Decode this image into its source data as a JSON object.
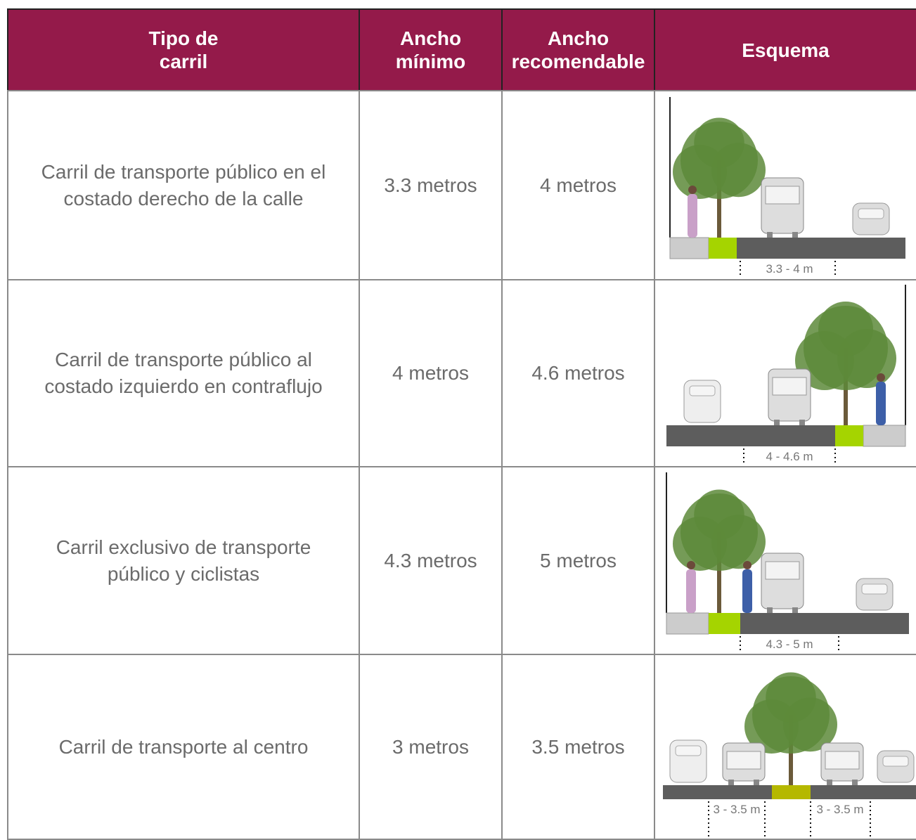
{
  "table": {
    "header": [
      "Tipo de carril",
      "Ancho mínimo",
      "Ancho recomendable",
      "Esquema"
    ],
    "rows": [
      {
        "type": "Carril de transporte público en el costado derecho de la calle",
        "min": "3.3 metros",
        "rec": "4 metros",
        "scheme_labels": [
          "3.3 - 4 m"
        ]
      },
      {
        "type": "Carril de transporte público al costado izquierdo en contraflujo",
        "min": "4 metros",
        "rec": "4.6 metros",
        "scheme_labels": [
          "4 - 4.6 m"
        ]
      },
      {
        "type": "Carril exclusivo de transporte público y ciclistas",
        "min": "4.3 metros",
        "rec": "5 metros",
        "scheme_labels": [
          "4.3 - 5 m"
        ]
      },
      {
        "type": "Carril de transporte al centro",
        "min": "3 metros",
        "rec": "3.5 metros",
        "scheme_labels": [
          "3 - 3.5 m",
          "3 - 3.5 m"
        ]
      }
    ]
  }
}
